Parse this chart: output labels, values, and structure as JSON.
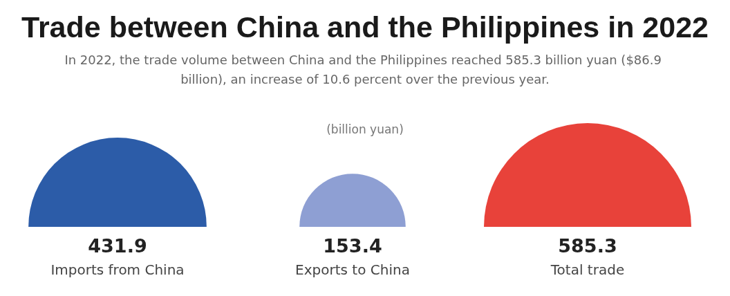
{
  "chart_data": {
    "type": "other",
    "title": "Trade between China and the Philippines in 2022",
    "subtitle": "In 2022, the trade volume between China and the Philippines reached 585.3 billion yuan ($86.9 billion), an increase of 10.6 percent over the previous year.",
    "ylabel": "(billion yuan)",
    "categories": [
      "Imports from China",
      "Exports to China",
      "Total trade"
    ],
    "values": [
      431.9,
      153.4,
      585.3
    ],
    "colors": [
      "#2c5ca8",
      "#8e9fd3",
      "#e8423a"
    ],
    "data_labels": true
  }
}
